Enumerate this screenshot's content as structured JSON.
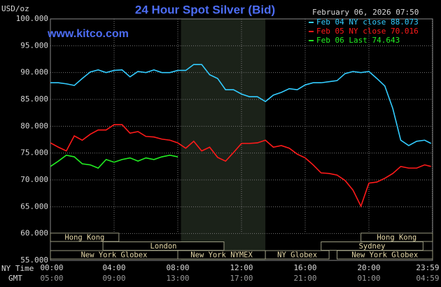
{
  "chart_data": {
    "type": "line",
    "title": "24 Hour Spot Silver (Bid)",
    "y_label": "USD/oz",
    "timestamp": "February 06, 2026 07:50",
    "site": "www.kitco.com",
    "x_label": "NY Time",
    "x2_label": "GMT",
    "xlim": [
      0,
      24
    ],
    "xticks": [
      {
        "value": 0,
        "label": "00:00"
      },
      {
        "value": 4,
        "label": "04:00"
      },
      {
        "value": 8,
        "label": "08:00"
      },
      {
        "value": 12,
        "label": "12:00"
      },
      {
        "value": 16,
        "label": "16:00"
      },
      {
        "value": 20,
        "label": "20:00"
      },
      {
        "value": 23.98,
        "label": "23:59"
      }
    ],
    "xticks_gmt": [
      "05:00",
      "09:00",
      "13:00",
      "17:00",
      "21:00",
      "01:00",
      "04:59"
    ],
    "ylim": [
      55,
      100
    ],
    "yticks": [
      {
        "value": 55,
        "label": "55.000"
      },
      {
        "value": 60,
        "label": "60.000"
      },
      {
        "value": 65,
        "label": "65.000"
      },
      {
        "value": 70,
        "label": "70.000"
      },
      {
        "value": 75,
        "label": "75.000"
      },
      {
        "value": 80,
        "label": "80.000"
      },
      {
        "value": 85,
        "label": "85.000"
      },
      {
        "value": 90,
        "label": "90.000"
      },
      {
        "value": 95,
        "label": "95.000"
      },
      {
        "value": 100,
        "label": "100.000"
      }
    ],
    "grid": true,
    "highlight": [
      8.2,
      13.5
    ],
    "sessions": [
      {
        "label": "Hong Kong",
        "start": 0,
        "end": 4.3
      },
      {
        "label": "London",
        "start": 3.3,
        "end": 10.9
      },
      {
        "label": "New York Globex",
        "start": 0,
        "end": 8
      },
      {
        "label": "New York NYMEX",
        "start": 8,
        "end": 13.5
      },
      {
        "label": "NY Globex",
        "start": 13.5,
        "end": 17.5
      },
      {
        "label": "Sydney",
        "start": 17,
        "end": 23.4
      },
      {
        "label": "Hong Kong",
        "start": 19.5,
        "end": 24
      },
      {
        "label": "New York Globex",
        "start": 18,
        "end": 24
      }
    ],
    "series": [
      {
        "name": "Feb 04 NY close 88.073",
        "color": "#33ccff",
        "x": [
          0,
          0.5,
          1,
          1.5,
          2,
          2.5,
          3,
          3.5,
          4,
          4.5,
          5,
          5.5,
          6,
          6.5,
          7,
          7.5,
          8,
          8.5,
          9,
          9.5,
          10,
          10.5,
          11,
          11.5,
          12,
          12.5,
          13,
          13.5,
          14,
          14.5,
          15,
          15.5,
          16,
          16.5,
          17,
          17.5,
          18,
          18.5,
          19,
          19.5,
          20,
          20.5,
          21,
          21.5,
          22,
          22.5,
          23,
          23.5,
          23.9
        ],
        "values": [
          88.1,
          88.1,
          87.9,
          87.6,
          88.9,
          90.1,
          90.5,
          90.0,
          90.4,
          90.5,
          89.2,
          90.2,
          90.0,
          90.5,
          90.0,
          90.0,
          90.4,
          90.4,
          91.5,
          91.5,
          89.6,
          88.9,
          86.8,
          86.8,
          86.0,
          85.5,
          85.5,
          84.6,
          85.8,
          86.3,
          87.0,
          86.8,
          87.7,
          88.1,
          88.1,
          88.3,
          88.5,
          89.8,
          90.2,
          90.0,
          90.2,
          88.9,
          87.5,
          83.3,
          77.4,
          76.4,
          77.2,
          77.4,
          76.8
        ]
      },
      {
        "name": "Feb 05 NY close 70.016",
        "color": "#ff1a1a",
        "x": [
          0,
          0.5,
          1,
          1.5,
          2,
          2.5,
          3,
          3.5,
          4,
          4.5,
          5,
          5.5,
          6,
          6.5,
          7,
          7.5,
          8,
          8.5,
          9,
          9.5,
          10,
          10.5,
          11,
          11.5,
          12,
          12.5,
          13,
          13.5,
          14,
          14.5,
          15,
          15.5,
          16,
          16.5,
          17,
          17.5,
          18,
          18.5,
          19,
          19.5,
          20,
          20.5,
          21,
          21.5,
          22,
          22.5,
          23,
          23.5,
          23.9
        ],
        "values": [
          76.9,
          76.1,
          75.4,
          78.2,
          77.4,
          78.5,
          79.3,
          79.3,
          80.3,
          80.3,
          78.7,
          79.0,
          78.1,
          78.0,
          77.6,
          77.4,
          76.9,
          75.9,
          77.2,
          75.4,
          76.1,
          74.2,
          73.5,
          75.1,
          76.8,
          76.8,
          76.9,
          77.4,
          76.1,
          76.4,
          75.9,
          74.8,
          74.1,
          72.8,
          71.3,
          71.2,
          70.9,
          69.9,
          68.1,
          65.1,
          69.4,
          69.6,
          70.3,
          71.2,
          72.5,
          72.2,
          72.2,
          72.8,
          72.5
        ]
      },
      {
        "name": "Feb 06 Last 74.643",
        "color": "#22ee22",
        "x": [
          0,
          0.5,
          1,
          1.5,
          2,
          2.5,
          3,
          3.5,
          4,
          4.5,
          5,
          5.5,
          6,
          6.5,
          7,
          7.5,
          8
        ],
        "values": [
          72.5,
          73.5,
          74.6,
          74.3,
          73.0,
          72.8,
          72.2,
          73.8,
          73.3,
          73.8,
          74.1,
          73.5,
          74.1,
          73.8,
          74.3,
          74.6,
          74.3
        ]
      }
    ]
  }
}
